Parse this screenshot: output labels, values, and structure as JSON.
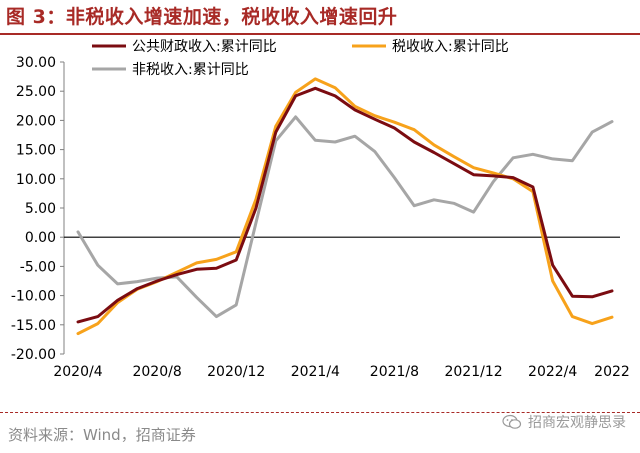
{
  "figure": {
    "title": "图 3：非税收入增速加速，税收收入增速回升",
    "source": "资料来源：Wind，招商证券",
    "watermark": "招商宏观静思录"
  },
  "colors": {
    "title": "#a82a26",
    "series_public": "#7b0c11",
    "series_tax": "#f7a21b",
    "series_nontax": "#a6a6a6",
    "zero_line": "#000000"
  },
  "chart_data": {
    "type": "line",
    "x_tick_labels": [
      "2020/4",
      "2020/8",
      "2020/12",
      "2021/4",
      "2021/8",
      "2021/12",
      "2022/4",
      "2022"
    ],
    "ylim": [
      -20,
      30
    ],
    "y_tick_step": 5,
    "y_tick_labels": [
      "30.00",
      "25.00",
      "20.00",
      "15.00",
      "10.00",
      "5.00",
      "0.00",
      "-5.00",
      "-10.00",
      "-15.00",
      "-20.00"
    ],
    "legend_position": "top",
    "grid": false,
    "x": [
      "2020/4",
      "2020/5",
      "2020/6",
      "2020/7",
      "2020/8",
      "2020/9",
      "2020/10",
      "2020/11",
      "2020/12",
      "2021/1",
      "2021/2",
      "2021/3",
      "2021/4",
      "2021/5",
      "2021/6",
      "2021/7",
      "2021/8",
      "2021/9",
      "2021/10",
      "2021/11",
      "2021/12",
      "2022/1",
      "2022/2",
      "2022/3",
      "2022/4",
      "2022/5",
      "2022/6",
      "2022/7"
    ],
    "series": [
      {
        "name": "公共财政收入:累计同比",
        "color_key": "series_public",
        "values": [
          -14.5,
          -13.6,
          -10.8,
          -8.8,
          -7.5,
          -6.4,
          -5.5,
          -5.3,
          -3.9,
          5.0,
          18.0,
          24.2,
          25.5,
          24.2,
          21.8,
          20.2,
          18.7,
          16.3,
          14.5,
          12.6,
          10.7,
          10.5,
          10.2,
          8.6,
          -4.8,
          -10.1,
          -10.2,
          -9.2
        ]
      },
      {
        "name": "税收收入:累计同比",
        "color_key": "series_tax",
        "values": [
          -16.5,
          -14.8,
          -11.2,
          -8.9,
          -7.6,
          -6.0,
          -4.4,
          -3.8,
          -2.5,
          6.5,
          19.0,
          24.8,
          27.1,
          25.6,
          22.4,
          20.8,
          19.7,
          18.4,
          15.8,
          13.8,
          11.9,
          11.0,
          10.0,
          7.8,
          -7.5,
          -13.6,
          -14.8,
          -13.7
        ]
      },
      {
        "name": "非税收入:累计同比",
        "color_key": "series_nontax",
        "values": [
          0.9,
          -4.8,
          -8.0,
          -7.6,
          -7.0,
          -6.8,
          -10.3,
          -13.6,
          -11.6,
          2.5,
          16.5,
          20.6,
          16.6,
          16.3,
          17.3,
          14.7,
          10.2,
          5.4,
          6.4,
          5.8,
          4.3,
          9.5,
          13.6,
          14.2,
          13.4,
          13.1,
          18.0,
          19.8
        ]
      }
    ]
  }
}
